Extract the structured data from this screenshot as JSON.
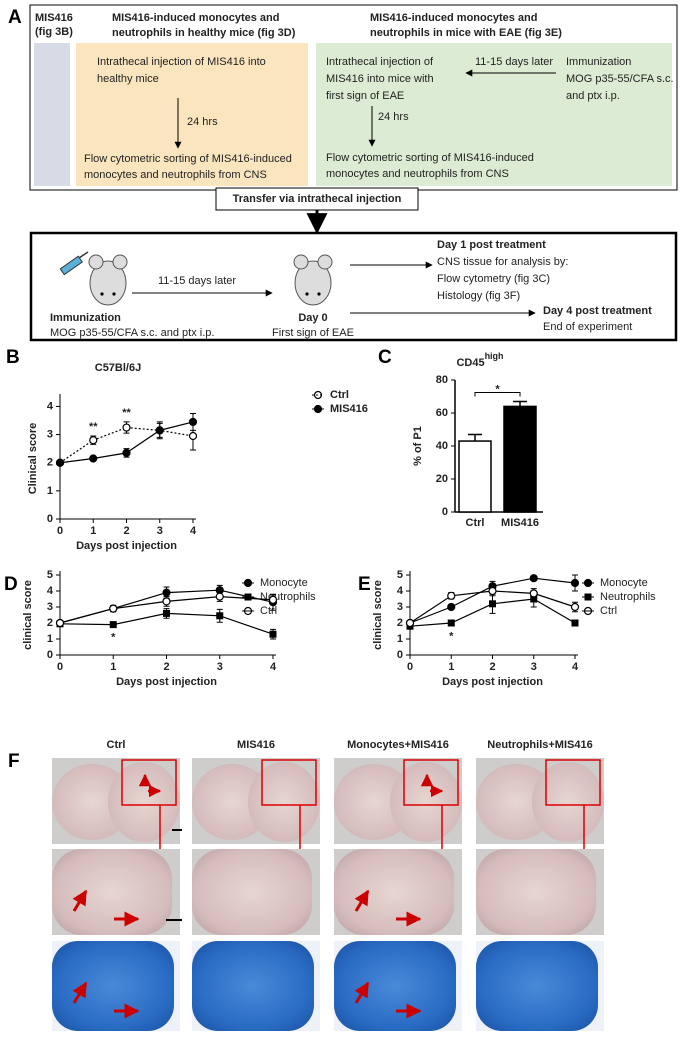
{
  "diagram": {
    "panel_label": "A",
    "box_fig3b": {
      "lines": [
        "MIS416",
        "(fig 3B)"
      ]
    },
    "box_fig3d": {
      "header": [
        "MIS416-induced monocytes and",
        "neutrophils in healthy mice (fig 3D)"
      ],
      "step1": [
        "Intrathecal injection of MIS416 into",
        "healthy mice"
      ],
      "interval": "24 hrs",
      "step2": [
        "Flow cytometric sorting of MIS416-induced",
        "monocytes and neutrophils from CNS"
      ]
    },
    "box_fig3e": {
      "header": [
        "MIS416-induced monocytes and",
        "neutrophils in mice with EAE (fig 3E)"
      ],
      "step1": [
        "Intrathecal injection of",
        "MIS416 into mice with",
        "first sign of EAE"
      ],
      "interval_immunization": "11-15 days later",
      "immunization": [
        "Immunization",
        "MOG p35-55/CFA s.c.",
        "and ptx i.p."
      ],
      "interval": "24 hrs",
      "step2": [
        "Flow cytometric sorting of MIS416-induced",
        "monocytes and neutrophils from CNS"
      ]
    },
    "transfer": "Transfer via intrathecal injection",
    "protocol": {
      "immunization_title": "Immunization",
      "immunization_detail": "MOG p35-55/CFA s.c. and ptx i.p.",
      "interval": "11-15 days later",
      "day0_title": "Day 0",
      "day0_detail": "First sign of EAE",
      "day1_title": "Day 1 post treatment",
      "day1_lines": [
        "CNS tissue for analysis by:",
        "Flow cytometry (fig 3C)",
        "Histology (fig 3F)"
      ],
      "day4_title": "Day 4 post treatment",
      "day4_detail": "End of experiment"
    }
  },
  "chart_data": [
    {
      "panel_label": "B",
      "type": "line",
      "title": "C57Bl/6J",
      "x_label": "Days post injection",
      "y_label": "Clinical score",
      "x": [
        0,
        1,
        2,
        3,
        4
      ],
      "xlim": [
        0,
        4
      ],
      "xticks": [
        0,
        1,
        2,
        3,
        4
      ],
      "ylim": [
        0,
        4.3
      ],
      "yticks": [
        0,
        1,
        2,
        3,
        4
      ],
      "legend": "right",
      "series": [
        {
          "name": "Ctrl",
          "color": "#000000",
          "marker": "open-circle",
          "linestyle": "dotted",
          "values": [
            2,
            2.8,
            3.25,
            3.15,
            2.95
          ],
          "errors": [
            0,
            0.15,
            0.2,
            0.25,
            0.5
          ]
        },
        {
          "name": "MIS416",
          "color": "#000000",
          "marker": "circle",
          "linestyle": "solid",
          "values": [
            2,
            2.15,
            2.35,
            3.15,
            3.45
          ],
          "errors": [
            0,
            0.05,
            0.15,
            0.3,
            0.3
          ]
        }
      ],
      "annotations": [
        {
          "text": "**",
          "x": 1,
          "placement": "above"
        },
        {
          "text": "**",
          "x": 2,
          "placement": "above"
        }
      ]
    },
    {
      "panel_label": "C",
      "type": "bar",
      "title": "CD45",
      "title_superscript": "high",
      "y_label": "% of P1",
      "categories": [
        "Ctrl",
        "MIS416"
      ],
      "values": [
        43,
        64
      ],
      "errors": [
        4,
        3
      ],
      "colors": [
        "#ffffff",
        "#000000"
      ],
      "ylim": [
        0,
        80
      ],
      "yticks": [
        0,
        20,
        40,
        60,
        80
      ],
      "annotations": [
        {
          "text": "*"
        }
      ]
    },
    {
      "panel_label": "D",
      "type": "line",
      "x_label": "Days post injection",
      "y_label": "clinical score",
      "x": [
        0,
        1,
        2,
        3,
        4
      ],
      "xlim": [
        0,
        4
      ],
      "xticks": [
        0,
        1,
        2,
        3,
        4
      ],
      "ylim": [
        0,
        5
      ],
      "yticks": [
        0,
        1,
        2,
        3,
        4,
        5
      ],
      "legend": "right",
      "series": [
        {
          "name": "Monocyte",
          "color": "#000000",
          "marker": "circle",
          "linestyle": "solid",
          "values": [
            2,
            2.9,
            3.9,
            4.05,
            3.3
          ],
          "errors": [
            0.1,
            0.2,
            0.35,
            0.3,
            0.5
          ]
        },
        {
          "name": "Neutrophils",
          "color": "#000000",
          "marker": "square",
          "linestyle": "solid",
          "values": [
            1.95,
            1.9,
            2.6,
            2.45,
            1.3
          ],
          "errors": [
            0.1,
            0.05,
            0.3,
            0.4,
            0.3
          ]
        },
        {
          "name": "Ctrl",
          "color": "#000000",
          "marker": "open-circle",
          "linestyle": "solid",
          "values": [
            2,
            2.9,
            3.35,
            3.65,
            3.45
          ],
          "errors": [
            0.1,
            0.15,
            0.3,
            0.3,
            0.3
          ]
        }
      ],
      "annotations": [
        {
          "text": "*",
          "x": 1,
          "placement": "below"
        }
      ]
    },
    {
      "panel_label": "E",
      "type": "line",
      "x_label": "Days post injection",
      "y_label": "clinical score",
      "x": [
        0,
        1,
        2,
        3,
        4
      ],
      "xlim": [
        0,
        4
      ],
      "xticks": [
        0,
        1,
        2,
        3,
        4
      ],
      "ylim": [
        0,
        5
      ],
      "yticks": [
        0,
        1,
        2,
        3,
        4,
        5
      ],
      "legend": "right",
      "series": [
        {
          "name": "Monocyte",
          "color": "#000000",
          "marker": "circle",
          "linestyle": "solid",
          "values": [
            2,
            3,
            4.3,
            4.8,
            4.5
          ],
          "errors": [
            0.1,
            0.1,
            0.3,
            0.1,
            0.5
          ]
        },
        {
          "name": "Neutrophils",
          "color": "#000000",
          "marker": "square",
          "linestyle": "solid",
          "values": [
            1.8,
            2,
            3.2,
            3.5,
            2
          ],
          "errors": [
            0.1,
            0.1,
            0.6,
            0.5,
            0.05
          ]
        },
        {
          "name": "Ctrl",
          "color": "#000000",
          "marker": "open-circle",
          "linestyle": "solid",
          "values": [
            2,
            3.7,
            4,
            3.85,
            3
          ],
          "errors": [
            0.1,
            0.2,
            0.3,
            0.3,
            0.3
          ]
        }
      ],
      "annotations": [
        {
          "text": "*",
          "x": 1,
          "placement": "below"
        }
      ]
    }
  ],
  "histology": {
    "panel_label": "F",
    "columns": [
      "Ctrl",
      "MIS416",
      "Monocytes+MIS416",
      "Neutrophils+MIS416"
    ]
  }
}
